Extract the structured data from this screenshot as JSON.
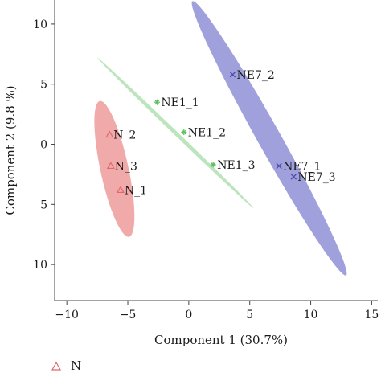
{
  "chart_data": {
    "type": "scatter",
    "xlabel": "Component 1 (30.7%)",
    "ylabel": "Component 2 (9.8 %)",
    "xlim": [
      -11,
      15.5
    ],
    "ylim": [
      -13,
      12
    ],
    "xticks": [
      -10,
      -5,
      0,
      5,
      10,
      15
    ],
    "yticks": [
      10,
      5,
      0,
      -5,
      -10
    ],
    "ytick_labels": [
      "10",
      "5",
      "0",
      "5",
      "10"
    ],
    "xtick_labels": [
      "−10",
      "−5",
      "0",
      "5",
      "10",
      "15"
    ],
    "grid": false,
    "series": [
      {
        "name": "N",
        "marker": "triangle",
        "color": "#e06a6a",
        "ellipse_color": "#ef9b9b",
        "points": [
          {
            "label": "N_2",
            "x": -6.5,
            "y": 0.8
          },
          {
            "label": "N_3",
            "x": -6.4,
            "y": -1.8
          },
          {
            "label": "N_1",
            "x": -5.6,
            "y": -3.8
          }
        ]
      },
      {
        "name": "NE1",
        "marker": "asterisk",
        "color": "#5cbf5c",
        "ellipse_color": "#b2e0b2",
        "points": [
          {
            "label": "NE1_1",
            "x": -2.6,
            "y": 3.5
          },
          {
            "label": "NE1_2",
            "x": -0.4,
            "y": 1.0
          },
          {
            "label": "NE1_3",
            "x": 2.0,
            "y": -1.7
          }
        ]
      },
      {
        "name": "NE7",
        "marker": "x",
        "color": "#4a4aa8",
        "ellipse_color": "#8f8fd6",
        "points": [
          {
            "label": "NE7_2",
            "x": 3.6,
            "y": 5.8
          },
          {
            "label": "NE7_1",
            "x": 7.4,
            "y": -1.8
          },
          {
            "label": "NE7_3",
            "x": 8.6,
            "y": -2.7
          }
        ]
      }
    ],
    "ellipses": [
      {
        "series": "N",
        "from": [
          -7.3,
          3.6
        ],
        "to": [
          -4.9,
          -7.7
        ],
        "half_width": 1.15
      },
      {
        "series": "NE1",
        "from": [
          -7.5,
          7.2
        ],
        "to": [
          5.3,
          -5.3
        ],
        "half_width": 0.16
      },
      {
        "series": "NE7",
        "from": [
          0.3,
          11.9
        ],
        "to": [
          12.9,
          -10.9
        ],
        "half_width": 0.95
      }
    ],
    "legend": {
      "placement": "bottom-left",
      "entries": [
        {
          "name": "N",
          "marker": "triangle",
          "color": "#e06a6a"
        }
      ]
    }
  }
}
